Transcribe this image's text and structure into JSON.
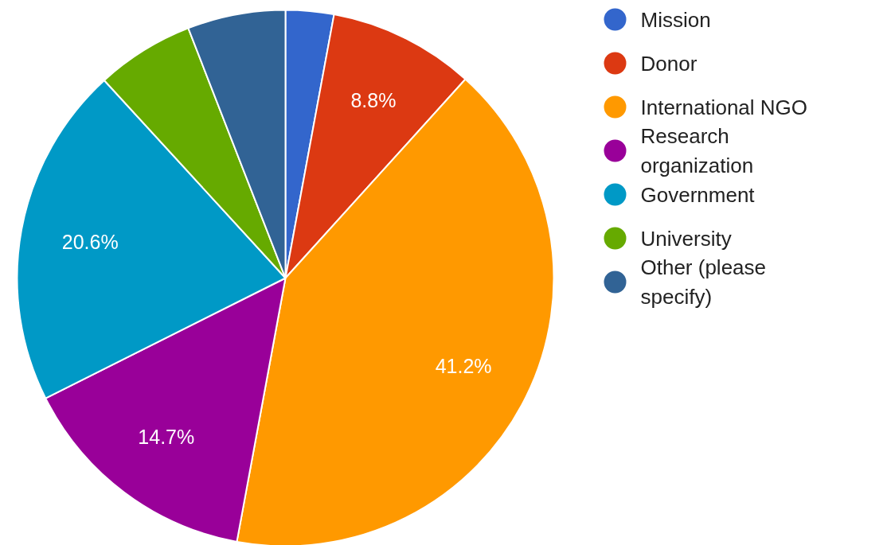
{
  "chart_data": {
    "type": "pie",
    "categories": [
      "Mission",
      "Donor",
      "International NGO",
      "Research organization",
      "Government",
      "University",
      "Other (please specify)"
    ],
    "values": [
      2.9,
      8.8,
      41.2,
      14.7,
      20.6,
      5.9,
      5.9
    ],
    "colors": [
      "#3366cc",
      "#dc3912",
      "#ff9900",
      "#990099",
      "#0099c6",
      "#66aa00",
      "#316395"
    ],
    "value_labels": [
      null,
      "8.8%",
      "41.2%",
      "14.7%",
      "20.6%",
      null,
      null
    ],
    "legend": "right"
  }
}
